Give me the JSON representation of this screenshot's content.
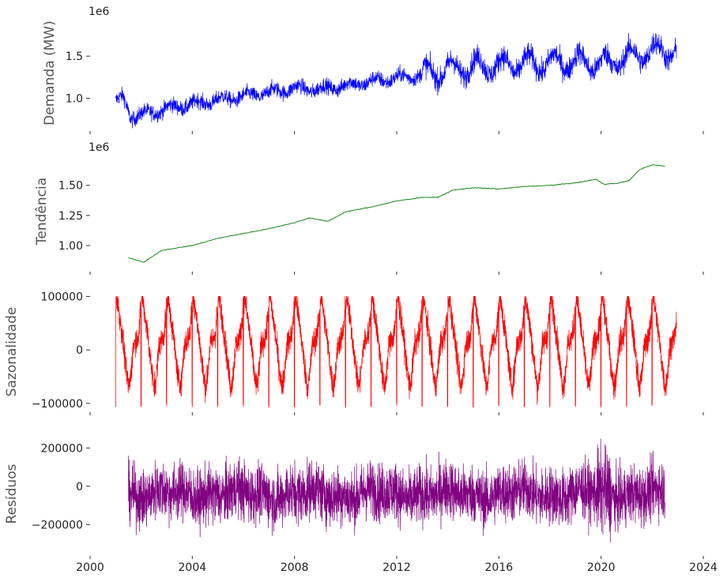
{
  "chart_data": [
    {
      "type": "line",
      "id": "demand",
      "ylabel": "Demanda (MW)",
      "offset_text": "1e6",
      "color": "#0000ff",
      "xlim": [
        2000,
        2024
      ],
      "ylim": [
        620000,
        1980000
      ],
      "yticks": [
        1000000,
        1500000
      ],
      "ytick_labels": [
        "1.0",
        "1.5"
      ],
      "series": [
        {
          "x": [
            2001.0,
            2001.3,
            2001.6,
            2002.0,
            2003.0,
            2004.0,
            2005.0,
            2006.0,
            2007.0,
            2008.0,
            2009.0,
            2010.0,
            2011.0,
            2012.0,
            2013.0,
            2014.0,
            2015.0,
            2016.0,
            2017.0,
            2018.0,
            2019.0,
            2020.0,
            2021.0,
            2022.0,
            2022.95
          ],
          "values": [
            950000,
            1010000,
            780000,
            800000,
            880000,
            930000,
            980000,
            1020000,
            1070000,
            1120000,
            1110000,
            1150000,
            1200000,
            1240000,
            1280000,
            1340000,
            1380000,
            1390000,
            1410000,
            1420000,
            1440000,
            1410000,
            1480000,
            1560000,
            1570000
          ]
        }
      ]
    },
    {
      "type": "line",
      "id": "trend",
      "ylabel": "Tendência",
      "offset_text": "1e6",
      "color": "#008000",
      "xlim": [
        2000,
        2024
      ],
      "ylim": [
        790000,
        1780000
      ],
      "yticks": [
        1000000,
        1250000,
        1500000
      ],
      "ytick_labels": [
        "1.00",
        "1.25",
        "1.50"
      ],
      "series": [
        {
          "x": [
            2001.5,
            2002.1,
            2002.8,
            2004.0,
            2005.0,
            2006.0,
            2007.0,
            2008.0,
            2008.6,
            2009.3,
            2010.0,
            2011.0,
            2012.0,
            2013.0,
            2013.6,
            2014.2,
            2015.0,
            2016.0,
            2017.0,
            2018.0,
            2019.0,
            2019.8,
            2020.1,
            2020.6,
            2021.1,
            2021.5,
            2022.0,
            2022.5
          ],
          "values": [
            900000,
            860000,
            960000,
            1000000,
            1060000,
            1100000,
            1140000,
            1190000,
            1230000,
            1200000,
            1280000,
            1320000,
            1370000,
            1400000,
            1400000,
            1460000,
            1480000,
            1470000,
            1490000,
            1500000,
            1520000,
            1550000,
            1510000,
            1515000,
            1540000,
            1630000,
            1670000,
            1660000
          ]
        }
      ]
    },
    {
      "type": "line",
      "id": "seasonal",
      "ylabel": "Sazonalidade",
      "color": "#ff0000",
      "xlim": [
        2000,
        2024
      ],
      "ylim": [
        -115000,
        108000
      ],
      "yticks": [
        -100000,
        0,
        100000
      ],
      "ytick_labels": [
        "−100000",
        "0",
        "100000"
      ],
      "period_years": 1,
      "series": [
        {
          "x": [
            0.0,
            0.05,
            0.12,
            0.25,
            0.42,
            0.5,
            0.58,
            0.7,
            0.82,
            0.9,
            0.96,
            1.0
          ],
          "values": [
            90000,
            100000,
            75000,
            30000,
            -40000,
            -70000,
            -55000,
            10000,
            20000,
            30000,
            60000,
            95000
          ]
        }
      ],
      "x_start": 2001.0,
      "x_end": 2022.95
    },
    {
      "type": "line",
      "id": "residuals",
      "ylabel": "Resíduos",
      "color": "#800080",
      "xlim": [
        2000,
        2024
      ],
      "ylim": [
        -360000,
        280000
      ],
      "yticks": [
        -200000,
        0,
        200000
      ],
      "ytick_labels": [
        "−200000",
        "0",
        "200000"
      ],
      "x_start": 2001.5,
      "x_end": 2022.5,
      "xticks": [
        2000,
        2004,
        2008,
        2012,
        2016,
        2020,
        2024
      ],
      "xtick_labels": [
        "2000",
        "2004",
        "2008",
        "2012",
        "2016",
        "2020",
        "2024"
      ]
    }
  ]
}
